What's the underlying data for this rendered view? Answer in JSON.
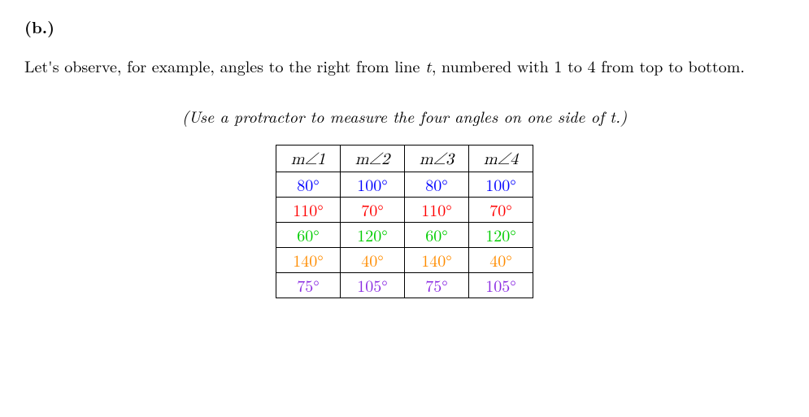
{
  "heading": "(b.)",
  "paragraph_parts": {
    "p1": "Let's observe, for example, angles to the right from line ",
    "var_t": "t",
    "p2": ", numbered with 1 to 4 from top to bottom."
  },
  "instruction": "(Use a protractor to measure the four angles on one side of t.)",
  "table": {
    "headers": [
      "m∠1",
      "m∠2",
      "m∠3",
      "m∠4"
    ],
    "rows": [
      {
        "color": "#0000ff",
        "cells": [
          "80°",
          "100°",
          "80°",
          "100°"
        ]
      },
      {
        "color": "#ff0000",
        "cells": [
          "110°",
          "70°",
          "110°",
          "70°"
        ]
      },
      {
        "color": "#00cc00",
        "cells": [
          "60°",
          "120°",
          "60°",
          "120°"
        ]
      },
      {
        "color": "#ff8c00",
        "cells": [
          "140°",
          "40°",
          "140°",
          "40°"
        ]
      },
      {
        "color": "#8a2be2",
        "cells": [
          "75°",
          "105°",
          "75°",
          "105°"
        ]
      }
    ]
  },
  "styles": {
    "font_size_body": 20,
    "font_size_table": 20,
    "background": "#ffffff",
    "text_color": "#000000",
    "border_color": "#000000"
  }
}
